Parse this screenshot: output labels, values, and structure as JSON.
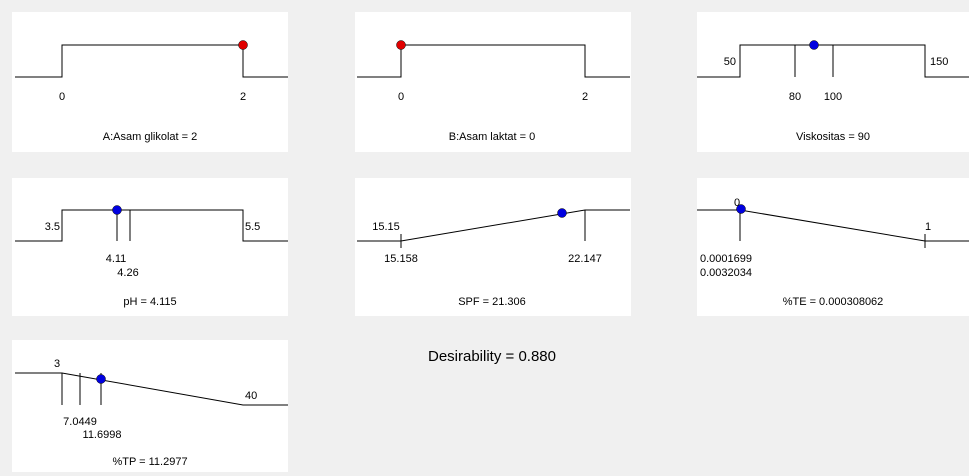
{
  "panels": [
    {
      "title": "A:Asam glikolat = 2",
      "labels": [
        "0",
        "2"
      ]
    },
    {
      "title": "B:Asam laktat = 0",
      "labels": [
        "0",
        "2"
      ]
    },
    {
      "title": "Viskositas = 90",
      "labels": [
        "50",
        "150",
        "80",
        "100"
      ]
    },
    {
      "title": "pH = 4.115",
      "labels": [
        "3.5",
        "5.5",
        "4.11",
        "4.26"
      ]
    },
    {
      "title": "SPF = 21.306",
      "labels": [
        "15.15",
        "15.158",
        "22.147"
      ]
    },
    {
      "title": "%TE = 0.000308062",
      "labels": [
        "0",
        "1",
        "0.0001699",
        "0.0032034"
      ]
    },
    {
      "title": "%TP = 11.2977",
      "labels": [
        "3",
        "40",
        "7.0449",
        "11.6998"
      ]
    }
  ],
  "desirability": "Desirability = 0.880"
}
